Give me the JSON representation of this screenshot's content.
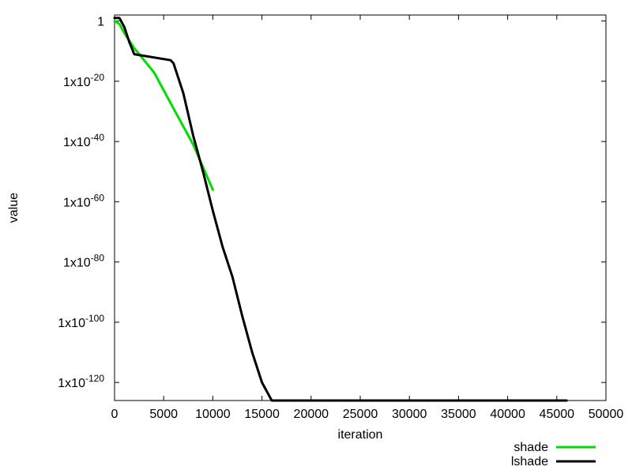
{
  "chart_data": {
    "type": "line",
    "title": "",
    "xlabel": "iteration",
    "ylabel": "value",
    "xlim": [
      0,
      50000
    ],
    "ylim_log10": [
      -126,
      2
    ],
    "log_y": true,
    "grid": false,
    "legend_position": "bottom-right-outside",
    "x_ticks": [
      0,
      5000,
      10000,
      15000,
      20000,
      25000,
      30000,
      35000,
      40000,
      45000,
      50000
    ],
    "x_tick_labels": [
      "0",
      "5000",
      "10000",
      "15000",
      "20000",
      "25000",
      "30000",
      "35000",
      "40000",
      "45000",
      "50000"
    ],
    "y_ticks": [
      {
        "exp": 0,
        "base": "1",
        "sup": ""
      },
      {
        "exp": -20,
        "base": "1x10",
        "sup": "-20"
      },
      {
        "exp": -40,
        "base": "1x10",
        "sup": "-40"
      },
      {
        "exp": -60,
        "base": "1x10",
        "sup": "-60"
      },
      {
        "exp": -80,
        "base": "1x10",
        "sup": "-80"
      },
      {
        "exp": -100,
        "base": "1x10",
        "sup": "-100"
      },
      {
        "exp": -120,
        "base": "1x10",
        "sup": "-120"
      }
    ],
    "series": [
      {
        "name": "shade",
        "color": "#00dd00",
        "points": [
          [
            0,
            0
          ],
          [
            500,
            -1
          ],
          [
            1000,
            -4
          ],
          [
            2000,
            -9
          ],
          [
            4000,
            -17
          ],
          [
            6000,
            -29
          ],
          [
            8000,
            -41
          ],
          [
            10000,
            -56
          ]
        ]
      },
      {
        "name": "lshade",
        "color": "#000000",
        "points": [
          [
            0,
            1
          ],
          [
            500,
            1
          ],
          [
            1000,
            -2
          ],
          [
            1500,
            -7
          ],
          [
            2000,
            -11
          ],
          [
            5700,
            -13
          ],
          [
            6000,
            -14
          ],
          [
            7000,
            -24
          ],
          [
            8000,
            -38
          ],
          [
            9000,
            -50
          ],
          [
            10000,
            -63
          ],
          [
            11000,
            -75
          ],
          [
            12000,
            -85
          ],
          [
            13000,
            -98
          ],
          [
            14000,
            -110
          ],
          [
            15000,
            -120
          ],
          [
            16000,
            -126
          ],
          [
            46000,
            -126
          ]
        ]
      }
    ]
  }
}
